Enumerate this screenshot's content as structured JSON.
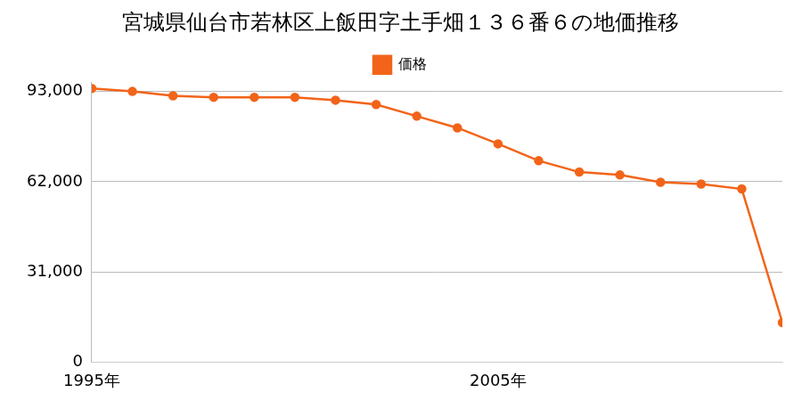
{
  "chart_data": {
    "type": "line",
    "title": "宮城県仙台市若林区上飯田字土手畑１３６番６の地価推移",
    "categories": [
      "1995年",
      null,
      null,
      null,
      null,
      null,
      null,
      null,
      null,
      null,
      "2005年",
      null,
      null,
      null,
      null,
      null,
      null,
      null
    ],
    "series": [
      {
        "name": "価格",
        "color": "#f26419",
        "marker": "circle",
        "line_style": "solid",
        "values": [
          94000,
          93000,
          91500,
          91000,
          91000,
          91000,
          90000,
          88500,
          84500,
          80500,
          75000,
          69200,
          65300,
          64300,
          61800,
          61200,
          59500,
          13600
        ]
      }
    ],
    "ylim": [
      0,
      96000
    ],
    "yticks": [
      0,
      {
        "value": 31000,
        "label": "31,000"
      },
      {
        "value": 62000,
        "label": "62,000"
      },
      {
        "value": 93000,
        "label": "93,000"
      }
    ],
    "grid": true,
    "legend": "top"
  }
}
